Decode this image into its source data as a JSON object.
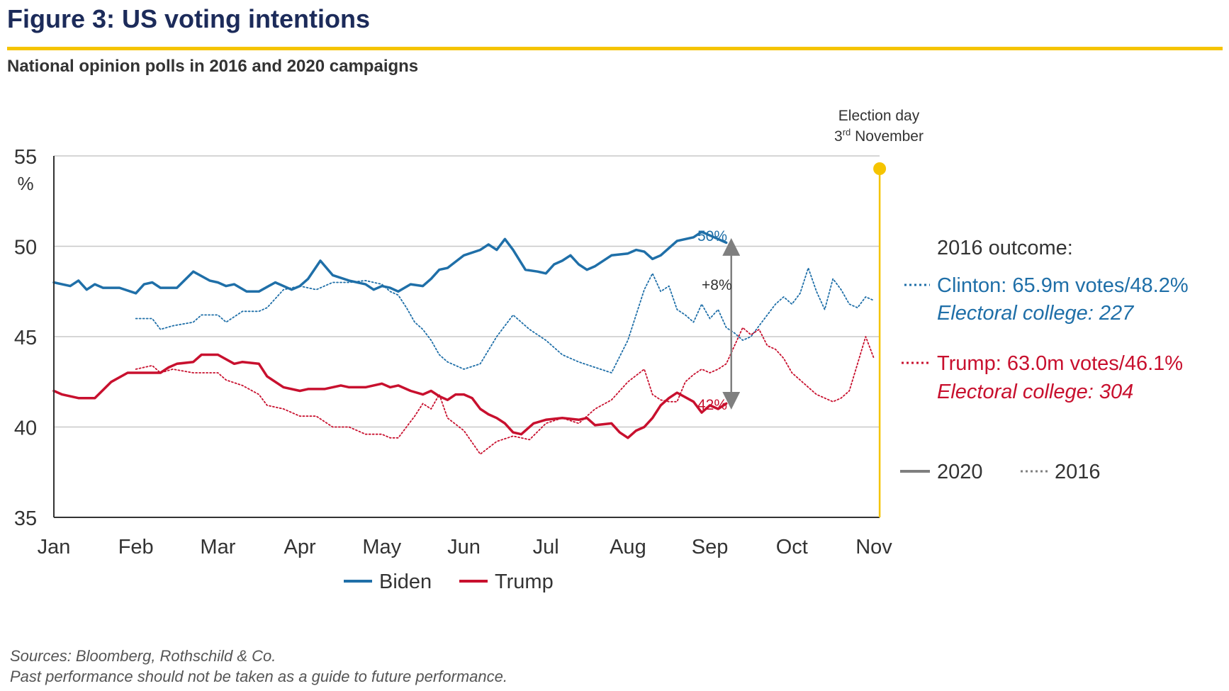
{
  "header": {
    "title": "Figure 3: US voting intentions",
    "subtitle": "National opinion polls in 2016 and 2020 campaigns"
  },
  "colors": {
    "biden": "#1f6fa8",
    "trump": "#c8102e",
    "accent": "#f5c400",
    "grey": "#7f7f7f",
    "title": "#1c2b5a"
  },
  "annotations": {
    "election_day_line1": "Election day",
    "election_day_line2_num": "3",
    "election_day_line2_sup": "rd",
    "election_day_line2_rest": " November",
    "biden_end": "50%",
    "trump_end": "42%",
    "gap": "+8%"
  },
  "outcome_box": {
    "heading": "2016 outcome:",
    "clinton_line1": "Clinton: 65.9m votes/48.2%",
    "clinton_line2": "Electoral college: 227",
    "trump_line1": "Trump: 63.0m votes/46.1%",
    "trump_line2": "Electoral college: 304"
  },
  "style_legend": {
    "solid": "2020",
    "dotted": "2016"
  },
  "legend": {
    "biden": "Biden",
    "trump": "Trump"
  },
  "footer": {
    "sources": "Sources: Bloomberg, Rothschild & Co.",
    "disclaimer": "Past performance should not be taken as a guide to future performance."
  },
  "chart_data": {
    "type": "line",
    "ylabel": "%",
    "ylim": [
      35,
      55
    ],
    "yticks": [
      35,
      40,
      45,
      50,
      55
    ],
    "xlim": [
      0,
      10
    ],
    "x_tick_labels": [
      "Jan",
      "Feb",
      "Mar",
      "Apr",
      "May",
      "Jun",
      "Jul",
      "Aug",
      "Sep",
      "Oct",
      "Nov"
    ],
    "x_note": "x is months elapsed since 1 January (0 = Jan, 10 = Nov)",
    "election_day_x": 10.07,
    "grid": "horizontal",
    "legend_position": "bottom",
    "series": [
      {
        "name": "Biden",
        "year": "2020",
        "style": "solid",
        "color": "#1f6fa8",
        "x": [
          0,
          0.1,
          0.2,
          0.3,
          0.4,
          0.5,
          0.6,
          0.8,
          1.0,
          1.1,
          1.2,
          1.3,
          1.5,
          1.7,
          1.9,
          2.0,
          2.1,
          2.2,
          2.35,
          2.5,
          2.7,
          2.9,
          3.0,
          3.1,
          3.25,
          3.4,
          3.6,
          3.8,
          3.9,
          4.0,
          4.1,
          4.2,
          4.35,
          4.5,
          4.6,
          4.7,
          4.8,
          5.0,
          5.2,
          5.3,
          5.4,
          5.5,
          5.6,
          5.75,
          5.9,
          6.0,
          6.1,
          6.2,
          6.3,
          6.4,
          6.5,
          6.6,
          6.8,
          7.0,
          7.1,
          7.2,
          7.3,
          7.4,
          7.6,
          7.8,
          7.9,
          8.0,
          8.1,
          8.2
        ],
        "values": [
          48,
          47.9,
          47.8,
          48.1,
          47.6,
          47.9,
          47.7,
          47.7,
          47.4,
          47.9,
          48.0,
          47.7,
          47.7,
          48.6,
          48.1,
          48.0,
          47.8,
          47.9,
          47.5,
          47.5,
          48.0,
          47.6,
          47.8,
          48.2,
          49.2,
          48.4,
          48.1,
          47.9,
          47.6,
          47.8,
          47.7,
          47.5,
          47.9,
          47.8,
          48.2,
          48.7,
          48.8,
          49.5,
          49.8,
          50.1,
          49.8,
          50.4,
          49.8,
          48.7,
          48.6,
          48.5,
          49.0,
          49.2,
          49.5,
          49.0,
          48.7,
          48.9,
          49.5,
          49.6,
          49.8,
          49.7,
          49.3,
          49.5,
          50.3,
          50.5,
          50.8,
          50.6,
          50.4,
          50.2
        ]
      },
      {
        "name": "Trump",
        "year": "2020",
        "style": "solid",
        "color": "#c8102e",
        "x": [
          0,
          0.1,
          0.3,
          0.4,
          0.5,
          0.7,
          0.9,
          1.1,
          1.3,
          1.4,
          1.5,
          1.7,
          1.8,
          2.0,
          2.2,
          2.3,
          2.5,
          2.6,
          2.8,
          3.0,
          3.1,
          3.3,
          3.5,
          3.6,
          3.8,
          4.0,
          4.1,
          4.2,
          4.35,
          4.5,
          4.6,
          4.7,
          4.8,
          4.9,
          5.0,
          5.1,
          5.2,
          5.3,
          5.4,
          5.5,
          5.6,
          5.7,
          5.85,
          6.0,
          6.2,
          6.4,
          6.5,
          6.6,
          6.8,
          6.9,
          7.0,
          7.1,
          7.2,
          7.3,
          7.4,
          7.5,
          7.6,
          7.8,
          7.9,
          8.0,
          8.1,
          8.2
        ],
        "values": [
          42,
          41.8,
          41.6,
          41.6,
          41.6,
          42.5,
          43.0,
          43.0,
          43.0,
          43.3,
          43.5,
          43.6,
          44.0,
          44.0,
          43.5,
          43.6,
          43.5,
          42.8,
          42.2,
          42.0,
          42.1,
          42.1,
          42.3,
          42.2,
          42.2,
          42.4,
          42.2,
          42.3,
          42.0,
          41.8,
          42.0,
          41.7,
          41.5,
          41.8,
          41.8,
          41.6,
          41.0,
          40.7,
          40.5,
          40.2,
          39.7,
          39.6,
          40.2,
          40.4,
          40.5,
          40.4,
          40.5,
          40.1,
          40.2,
          39.7,
          39.4,
          39.8,
          40.0,
          40.5,
          41.2,
          41.6,
          41.9,
          41.4,
          40.8,
          41.2,
          41.0,
          41.3
        ]
      },
      {
        "name": "Clinton",
        "year": "2016",
        "style": "dotted",
        "color": "#1f6fa8",
        "x": [
          1.0,
          1.2,
          1.3,
          1.45,
          1.7,
          1.8,
          2.0,
          2.1,
          2.3,
          2.5,
          2.6,
          2.8,
          3.0,
          3.2,
          3.4,
          3.6,
          3.8,
          4.0,
          4.1,
          4.2,
          4.3,
          4.4,
          4.5,
          4.6,
          4.7,
          4.8,
          5.0,
          5.2,
          5.4,
          5.6,
          5.8,
          6.0,
          6.2,
          6.4,
          6.6,
          6.8,
          7.0,
          7.2,
          7.3,
          7.4,
          7.5,
          7.6,
          7.7,
          7.8,
          7.9,
          8.0,
          8.1,
          8.2,
          8.3,
          8.4,
          8.5,
          8.6,
          8.7,
          8.8,
          8.9,
          9.0,
          9.1,
          9.2,
          9.3,
          9.4,
          9.5,
          9.6,
          9.7,
          9.8,
          9.9,
          10.0
        ],
        "values": [
          46.0,
          46.0,
          45.4,
          45.6,
          45.8,
          46.2,
          46.2,
          45.8,
          46.4,
          46.4,
          46.6,
          47.6,
          47.8,
          47.6,
          48.0,
          48.0,
          48.1,
          47.9,
          47.5,
          47.3,
          46.6,
          45.8,
          45.4,
          44.8,
          44.0,
          43.6,
          43.2,
          43.5,
          45.0,
          46.2,
          45.4,
          44.8,
          44.0,
          43.6,
          43.3,
          43.0,
          44.8,
          47.6,
          48.5,
          47.5,
          47.8,
          46.5,
          46.2,
          45.8,
          46.8,
          46.0,
          46.5,
          45.5,
          45.2,
          44.8,
          45.0,
          45.6,
          46.2,
          46.8,
          47.2,
          46.8,
          47.4,
          48.8,
          47.5,
          46.5,
          48.2,
          47.6,
          46.8,
          46.6,
          47.2,
          47.0
        ]
      },
      {
        "name": "Trump 2016",
        "year": "2016",
        "style": "dotted",
        "color": "#c8102e",
        "x": [
          1.0,
          1.2,
          1.3,
          1.45,
          1.7,
          1.8,
          2.0,
          2.1,
          2.3,
          2.5,
          2.6,
          2.8,
          3.0,
          3.2,
          3.4,
          3.6,
          3.8,
          4.0,
          4.1,
          4.2,
          4.3,
          4.4,
          4.5,
          4.6,
          4.7,
          4.8,
          5.0,
          5.2,
          5.4,
          5.6,
          5.8,
          6.0,
          6.2,
          6.4,
          6.6,
          6.8,
          7.0,
          7.2,
          7.3,
          7.4,
          7.5,
          7.6,
          7.7,
          7.8,
          7.9,
          8.0,
          8.1,
          8.2,
          8.3,
          8.4,
          8.5,
          8.6,
          8.7,
          8.8,
          8.9,
          9.0,
          9.1,
          9.2,
          9.3,
          9.4,
          9.5,
          9.6,
          9.7,
          9.8,
          9.9,
          10.0
        ],
        "values": [
          43.2,
          43.4,
          43.0,
          43.2,
          43.0,
          43.0,
          43.0,
          42.6,
          42.3,
          41.8,
          41.2,
          41.0,
          40.6,
          40.6,
          40.0,
          40.0,
          39.6,
          39.6,
          39.4,
          39.4,
          40.0,
          40.6,
          41.3,
          41.0,
          41.8,
          40.5,
          39.8,
          38.5,
          39.2,
          39.5,
          39.3,
          40.2,
          40.5,
          40.2,
          41.0,
          41.5,
          42.5,
          43.2,
          41.8,
          41.5,
          41.4,
          41.4,
          42.5,
          42.9,
          43.2,
          43.0,
          43.2,
          43.5,
          44.5,
          45.5,
          45.1,
          45.4,
          44.5,
          44.3,
          43.8,
          43.0,
          42.6,
          42.2,
          41.8,
          41.6,
          41.4,
          41.6,
          42.0,
          43.5,
          45.0,
          43.8
        ]
      }
    ]
  }
}
